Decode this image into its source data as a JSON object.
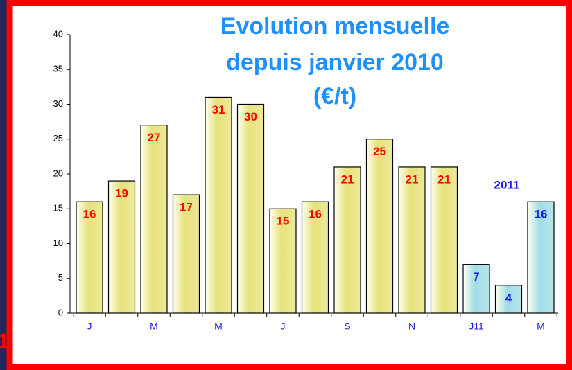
{
  "edge_text": "1",
  "chart_data": {
    "type": "bar",
    "title": [
      "Evolution mensuelle",
      "depuis janvier 2010",
      "(€/t)"
    ],
    "annotation": "2011",
    "categories": [
      "J",
      null,
      "M",
      null,
      "M",
      null,
      "J",
      null,
      "S",
      null,
      "N",
      null,
      "J11",
      null,
      "M"
    ],
    "values": [
      16,
      19,
      27,
      17,
      31,
      30,
      15,
      16,
      21,
      25,
      21,
      21,
      7,
      4,
      16
    ],
    "colors": [
      "#e6e27a",
      "#e6e27a",
      "#e6e27a",
      "#e6e27a",
      "#e6e27a",
      "#e6e27a",
      "#e6e27a",
      "#e6e27a",
      "#e6e27a",
      "#e6e27a",
      "#e6e27a",
      "#e6e27a",
      "#9fdde6",
      "#9fdde6",
      "#9fdde6"
    ],
    "label_colors": [
      "#ff0000",
      "#ff0000",
      "#ff0000",
      "#ff0000",
      "#ff0000",
      "#ff0000",
      "#ff0000",
      "#ff0000",
      "#ff0000",
      "#ff0000",
      "#ff0000",
      "#ff0000",
      "#1a1ae6",
      "#1a1ae6",
      "#1a1ae6"
    ],
    "ylim": [
      0,
      40
    ],
    "yticks": [
      0,
      5,
      10,
      15,
      20,
      25,
      30,
      35,
      40
    ],
    "grid": false
  }
}
